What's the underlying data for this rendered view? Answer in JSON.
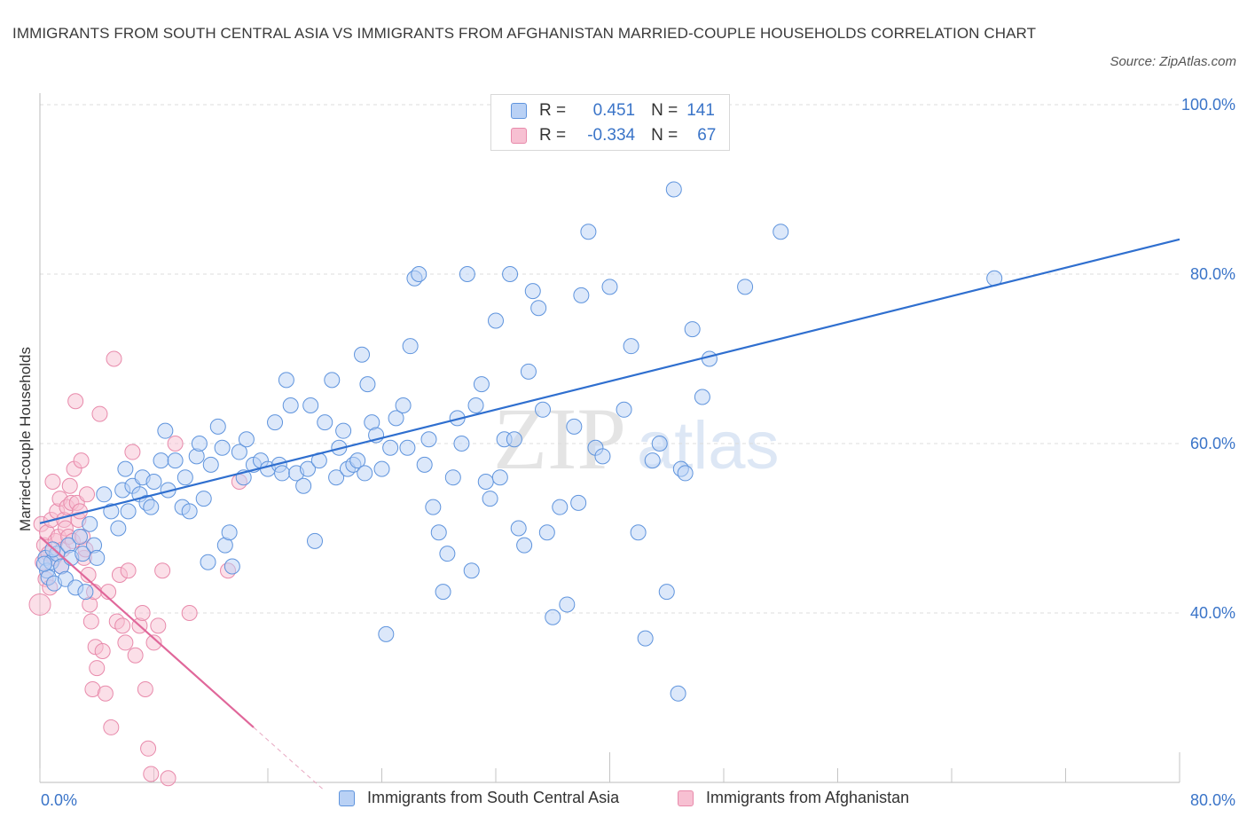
{
  "title": "IMMIGRANTS FROM SOUTH CENTRAL ASIA VS IMMIGRANTS FROM AFGHANISTAN MARRIED-COUPLE HOUSEHOLDS CORRELATION CHART",
  "source": "Source: ZipAtlas.com",
  "watermark": {
    "part1": "ZIP",
    "part2": "atlas"
  },
  "legend": {
    "rows": [
      {
        "r_label": "R =",
        "r_value": "0.451",
        "n_label": "N =",
        "n_value": "141",
        "color": "#7fa9e8"
      },
      {
        "r_label": "R =",
        "r_value": "-0.334",
        "n_label": "N =",
        "n_value": "67",
        "color": "#f08fb0"
      }
    ]
  },
  "colors": {
    "blue_fill": "#b9d1f5",
    "blue_stroke": "#5f94dd",
    "blue_line": "#2f6fcf",
    "pink_fill": "#f7c0d2",
    "pink_stroke": "#e88aab",
    "pink_line": "#e0679a",
    "grid": "#dcdcdc",
    "tick_text": "#3a74c8"
  },
  "chart_data": {
    "type": "scatter",
    "title": "IMMIGRANTS FROM SOUTH CENTRAL ASIA VS IMMIGRANTS FROM AFGHANISTAN MARRIED-COUPLE HOUSEHOLDS CORRELATION CHART",
    "xlabel": "",
    "ylabel": "Married-couple Households",
    "xlim": [
      0,
      80
    ],
    "ylim": [
      20,
      100
    ],
    "x_ticks_labeled": [
      "0.0%",
      "80.0%"
    ],
    "y_ticks": [
      {
        "value": 40,
        "label": "40.0%"
      },
      {
        "value": 60,
        "label": "60.0%"
      },
      {
        "value": 80,
        "label": "80.0%"
      },
      {
        "value": 100,
        "label": "100.0%"
      }
    ],
    "grid": true,
    "legend_position": "bottom",
    "series": [
      {
        "name": "Immigrants from South Central Asia",
        "r": 0.451,
        "n": 141,
        "trend": {
          "x0": 0,
          "y0": 50.6,
          "x1": 80,
          "y1": 84.1
        },
        "points": [
          [
            0.4,
            46.5
          ],
          [
            0.5,
            45.0
          ],
          [
            0.6,
            44.2
          ],
          [
            0.8,
            46.0
          ],
          [
            1.0,
            43.5
          ],
          [
            1.2,
            47.0
          ],
          [
            1.5,
            45.5
          ],
          [
            1.8,
            44.0
          ],
          [
            2.0,
            48.0
          ],
          [
            2.2,
            46.5
          ],
          [
            2.5,
            43.0
          ],
          [
            2.8,
            49.0
          ],
          [
            3.0,
            47.0
          ],
          [
            3.2,
            42.5
          ],
          [
            3.5,
            50.5
          ],
          [
            3.8,
            48.0
          ],
          [
            4.0,
            46.5
          ],
          [
            4.5,
            54.0
          ],
          [
            5.0,
            52.0
          ],
          [
            5.5,
            50.0
          ],
          [
            5.8,
            54.5
          ],
          [
            6.0,
            57.0
          ],
          [
            6.2,
            52.0
          ],
          [
            6.5,
            55.0
          ],
          [
            7.0,
            54.0
          ],
          [
            7.2,
            56.0
          ],
          [
            7.5,
            53.0
          ],
          [
            7.8,
            52.5
          ],
          [
            8.0,
            55.5
          ],
          [
            8.5,
            58.0
          ],
          [
            8.8,
            61.5
          ],
          [
            9.0,
            54.5
          ],
          [
            9.5,
            58.0
          ],
          [
            10.0,
            52.5
          ],
          [
            10.2,
            56.0
          ],
          [
            10.5,
            52.0
          ],
          [
            11.0,
            58.5
          ],
          [
            11.2,
            60.0
          ],
          [
            11.5,
            53.5
          ],
          [
            11.8,
            46.0
          ],
          [
            12.0,
            57.5
          ],
          [
            12.5,
            62.0
          ],
          [
            12.8,
            59.5
          ],
          [
            13.0,
            48.0
          ],
          [
            13.3,
            49.5
          ],
          [
            13.5,
            45.5
          ],
          [
            14.0,
            59.0
          ],
          [
            14.3,
            56.0
          ],
          [
            14.5,
            60.5
          ],
          [
            15.0,
            57.5
          ],
          [
            15.5,
            58.0
          ],
          [
            16.0,
            57.0
          ],
          [
            16.5,
            62.5
          ],
          [
            16.8,
            57.5
          ],
          [
            17.0,
            56.5
          ],
          [
            17.3,
            67.5
          ],
          [
            17.6,
            64.5
          ],
          [
            18.0,
            56.5
          ],
          [
            18.5,
            55.0
          ],
          [
            18.8,
            57.0
          ],
          [
            19.0,
            64.5
          ],
          [
            19.3,
            48.5
          ],
          [
            19.6,
            58.0
          ],
          [
            20.0,
            62.5
          ],
          [
            20.5,
            67.5
          ],
          [
            20.8,
            56.0
          ],
          [
            21.0,
            59.5
          ],
          [
            21.3,
            61.5
          ],
          [
            21.6,
            57.0
          ],
          [
            22.0,
            57.5
          ],
          [
            22.3,
            58.0
          ],
          [
            22.6,
            70.5
          ],
          [
            22.8,
            56.5
          ],
          [
            23.0,
            67.0
          ],
          [
            23.3,
            62.5
          ],
          [
            23.6,
            61.0
          ],
          [
            24.0,
            57.0
          ],
          [
            24.3,
            37.5
          ],
          [
            24.6,
            59.5
          ],
          [
            25.0,
            63.0
          ],
          [
            25.5,
            64.5
          ],
          [
            25.8,
            59.5
          ],
          [
            26.0,
            71.5
          ],
          [
            26.3,
            79.5
          ],
          [
            26.6,
            80.0
          ],
          [
            27.0,
            57.5
          ],
          [
            27.3,
            60.5
          ],
          [
            27.6,
            52.5
          ],
          [
            28.0,
            49.5
          ],
          [
            28.3,
            42.5
          ],
          [
            28.6,
            47.0
          ],
          [
            29.0,
            56.0
          ],
          [
            29.3,
            63.0
          ],
          [
            29.6,
            60.0
          ],
          [
            30.0,
            80.0
          ],
          [
            30.3,
            45.0
          ],
          [
            30.6,
            64.5
          ],
          [
            31.0,
            67.0
          ],
          [
            31.3,
            55.5
          ],
          [
            31.6,
            53.5
          ],
          [
            32.0,
            74.5
          ],
          [
            32.3,
            56.0
          ],
          [
            32.6,
            60.5
          ],
          [
            33.0,
            80.0
          ],
          [
            33.3,
            60.5
          ],
          [
            33.6,
            50.0
          ],
          [
            34.0,
            48.0
          ],
          [
            34.3,
            68.5
          ],
          [
            34.6,
            78.0
          ],
          [
            35.0,
            76.0
          ],
          [
            35.3,
            64.0
          ],
          [
            35.6,
            49.5
          ],
          [
            36.0,
            39.5
          ],
          [
            36.5,
            52.5
          ],
          [
            37.0,
            41.0
          ],
          [
            37.5,
            62.0
          ],
          [
            37.8,
            53.0
          ],
          [
            38.0,
            77.5
          ],
          [
            38.5,
            85.0
          ],
          [
            39.0,
            59.5
          ],
          [
            39.5,
            58.5
          ],
          [
            40.0,
            78.5
          ],
          [
            41.0,
            64.0
          ],
          [
            41.5,
            71.5
          ],
          [
            42.0,
            49.5
          ],
          [
            42.5,
            37.0
          ],
          [
            43.0,
            58.0
          ],
          [
            43.5,
            60.0
          ],
          [
            44.0,
            42.5
          ],
          [
            44.5,
            90.0
          ],
          [
            44.8,
            30.5
          ],
          [
            45.0,
            57.0
          ],
          [
            45.3,
            56.5
          ],
          [
            45.8,
            73.5
          ],
          [
            46.5,
            65.5
          ],
          [
            47.0,
            70.0
          ],
          [
            49.5,
            78.5
          ],
          [
            52.0,
            85.0
          ],
          [
            67.0,
            79.5
          ],
          [
            0.3,
            45.8
          ],
          [
            0.9,
            47.5
          ]
        ]
      },
      {
        "name": "Immigrants from Afghanistan",
        "r": -0.334,
        "n": 67,
        "trend": {
          "x0": 0,
          "y0": 49.0,
          "x1": 15.0,
          "y1": 26.5
        },
        "trend_dashed_to": {
          "x": 20.0,
          "y": 19.0
        },
        "points": [
          [
            0.0,
            41.0
          ],
          [
            0.1,
            50.5
          ],
          [
            0.2,
            46.0
          ],
          [
            0.3,
            48.0
          ],
          [
            0.4,
            44.0
          ],
          [
            0.5,
            49.5
          ],
          [
            0.6,
            47.0
          ],
          [
            0.7,
            43.0
          ],
          [
            0.8,
            51.0
          ],
          [
            0.9,
            55.5
          ],
          [
            1.0,
            46.5
          ],
          [
            1.1,
            48.5
          ],
          [
            1.2,
            52.0
          ],
          [
            1.3,
            49.0
          ],
          [
            1.4,
            53.5
          ],
          [
            1.5,
            45.5
          ],
          [
            1.6,
            47.5
          ],
          [
            1.7,
            51.0
          ],
          [
            1.8,
            50.0
          ],
          [
            1.9,
            52.5
          ],
          [
            2.0,
            49.0
          ],
          [
            2.1,
            55.0
          ],
          [
            2.2,
            53.0
          ],
          [
            2.3,
            48.5
          ],
          [
            2.4,
            57.0
          ],
          [
            2.5,
            65.0
          ],
          [
            2.6,
            53.0
          ],
          [
            2.7,
            51.0
          ],
          [
            2.8,
            52.0
          ],
          [
            2.9,
            58.0
          ],
          [
            3.0,
            49.0
          ],
          [
            3.1,
            46.5
          ],
          [
            3.2,
            47.5
          ],
          [
            3.3,
            54.0
          ],
          [
            3.4,
            44.5
          ],
          [
            3.5,
            41.0
          ],
          [
            3.6,
            39.0
          ],
          [
            3.7,
            31.0
          ],
          [
            3.8,
            42.5
          ],
          [
            3.9,
            36.0
          ],
          [
            4.0,
            33.5
          ],
          [
            4.2,
            63.5
          ],
          [
            4.4,
            35.5
          ],
          [
            4.6,
            30.5
          ],
          [
            4.8,
            42.5
          ],
          [
            5.0,
            26.5
          ],
          [
            5.2,
            70.0
          ],
          [
            5.4,
            39.0
          ],
          [
            5.6,
            44.5
          ],
          [
            5.8,
            38.5
          ],
          [
            6.0,
            36.5
          ],
          [
            6.2,
            45.0
          ],
          [
            6.5,
            59.0
          ],
          [
            6.7,
            35.0
          ],
          [
            7.0,
            38.5
          ],
          [
            7.2,
            40.0
          ],
          [
            7.4,
            31.0
          ],
          [
            7.6,
            24.0
          ],
          [
            7.8,
            21.0
          ],
          [
            8.0,
            36.5
          ],
          [
            8.3,
            38.5
          ],
          [
            8.6,
            45.0
          ],
          [
            9.0,
            20.5
          ],
          [
            9.5,
            60.0
          ],
          [
            10.5,
            40.0
          ],
          [
            13.2,
            45.0
          ],
          [
            14.0,
            55.5
          ]
        ]
      }
    ]
  }
}
